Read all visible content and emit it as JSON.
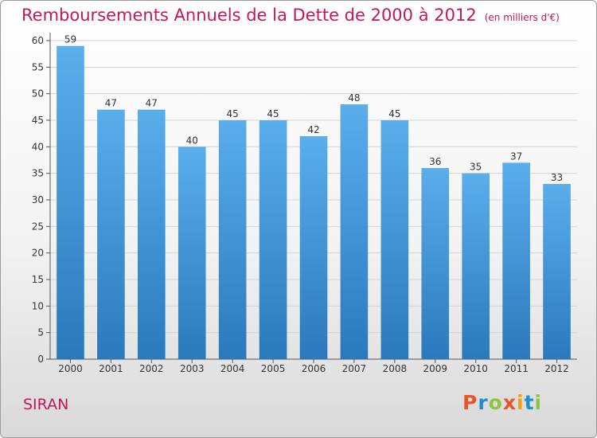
{
  "title": "Remboursements Annuels de la Dette de 2000 à 2012",
  "unit_note": "(en milliers d'€)",
  "commune": "SIRAN",
  "logo": {
    "text": "Proxiti",
    "letter_colors": [
      "#e8532a",
      "#1e8ed0",
      "#8cc63f",
      "#e8532a",
      "#f4a10e",
      "#1e8ed0",
      "#8cc63f"
    ]
  },
  "colors": {
    "title": "#c2185b",
    "bar_top": "#5aaeec",
    "bar_bottom": "#2a79bc"
  },
  "chart_data": {
    "type": "bar",
    "title": "Remboursements Annuels de la Dette de 2000 à 2012",
    "categories": [
      "2000",
      "2001",
      "2002",
      "2003",
      "2004",
      "2005",
      "2006",
      "2007",
      "2008",
      "2009",
      "2010",
      "2011",
      "2012"
    ],
    "values": [
      59,
      47,
      47,
      40,
      45,
      45,
      42,
      48,
      45,
      36,
      35,
      37,
      33
    ],
    "ylim": [
      0,
      60
    ],
    "yticks": [
      0,
      5,
      10,
      15,
      20,
      25,
      30,
      35,
      40,
      45,
      50,
      55,
      60
    ],
    "grid": true,
    "xlabel": "",
    "ylabel": ""
  }
}
